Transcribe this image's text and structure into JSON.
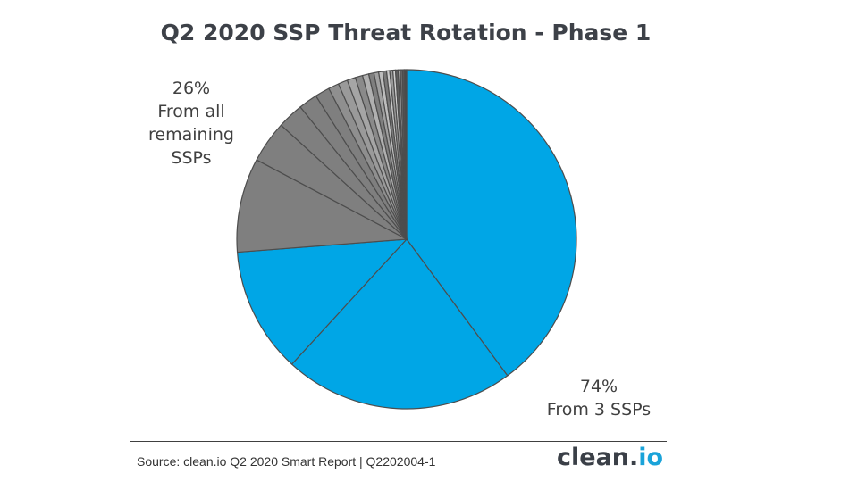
{
  "chart_data": {
    "type": "pie",
    "title": "Q2 2020 SSP Threat Rotation - Phase 1",
    "start_angle_deg": 0,
    "direction": "clockwise",
    "slices": [
      {
        "group": "top3",
        "value": 40.0,
        "color": "#00a6e6"
      },
      {
        "group": "top3",
        "value": 22.0,
        "color": "#00a6e6"
      },
      {
        "group": "top3",
        "value": 12.0,
        "color": "#00a6e6"
      },
      {
        "group": "rest",
        "value": 9.0,
        "color": "#7f7f7f"
      },
      {
        "group": "rest",
        "value": 4.0,
        "color": "#7f7f7f"
      },
      {
        "group": "rest",
        "value": 2.5,
        "color": "#7f7f7f"
      },
      {
        "group": "rest",
        "value": 1.8,
        "color": "#7f7f7f"
      },
      {
        "group": "rest",
        "value": 1.4,
        "color": "#7f7f7f"
      },
      {
        "group": "rest",
        "value": 1.0,
        "color": "#8f8f8f"
      },
      {
        "group": "rest",
        "value": 0.9,
        "color": "#9a9a9a"
      },
      {
        "group": "rest",
        "value": 0.8,
        "color": "#a5a5a5"
      },
      {
        "group": "rest",
        "value": 0.7,
        "color": "#8a8a8a"
      },
      {
        "group": "rest",
        "value": 0.6,
        "color": "#b0b0b0"
      },
      {
        "group": "rest",
        "value": 0.5,
        "color": "#7f7f7f"
      },
      {
        "group": "rest",
        "value": 0.45,
        "color": "#a0a0a0"
      },
      {
        "group": "rest",
        "value": 0.4,
        "color": "#bdbdbd"
      },
      {
        "group": "rest",
        "value": 0.35,
        "color": "#7a7a7a"
      },
      {
        "group": "rest",
        "value": 0.3,
        "color": "#c8c8c8"
      },
      {
        "group": "rest",
        "value": 0.3,
        "color": "#9a9a9a"
      },
      {
        "group": "rest",
        "value": 0.25,
        "color": "#d0d0d0"
      },
      {
        "group": "rest",
        "value": 0.25,
        "color": "#5f5f5f"
      },
      {
        "group": "rest",
        "value": 0.2,
        "color": "#b8b8b8"
      },
      {
        "group": "rest",
        "value": 0.2,
        "color": "#6f6f6f"
      },
      {
        "group": "rest",
        "value": 0.2,
        "color": "#555555"
      },
      {
        "group": "rest",
        "value": 0.2,
        "color": "#4a4a4a"
      }
    ],
    "annotations": {
      "rest": {
        "line1": "26%",
        "line2": "From all",
        "line3": "remaining",
        "line4": "SSPs"
      },
      "top3": {
        "line1": "74%",
        "line2": "From 3 SSPs"
      }
    },
    "legend": "none"
  },
  "footer": {
    "source": "Source: clean.io Q2 2020 Smart Report | Q2202004-1",
    "logo_main": "clean.",
    "logo_accent": "io"
  },
  "colors": {
    "blue": "#00a6e6",
    "grey": "#7f7f7f",
    "logo_accent": "#1aa3d9",
    "title": "#3d4148"
  }
}
